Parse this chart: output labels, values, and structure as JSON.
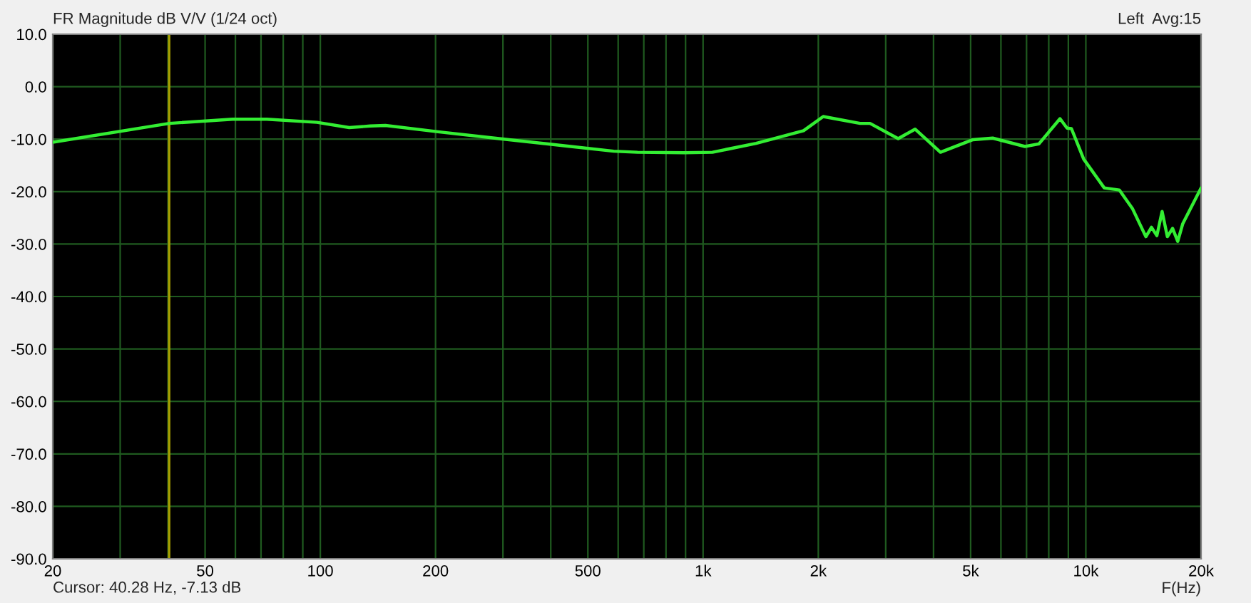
{
  "chart_data": {
    "type": "line",
    "title": "FR Magnitude dB V/V (1/24 oct)",
    "xlabel": "F(Hz)",
    "log": "x",
    "grid": true,
    "legend": false,
    "line_style": "solid",
    "marker": "none",
    "annotations": [
      "Left  Avg:15",
      "Cursor: 40.28 Hz, -7.13 dB"
    ],
    "xlim": [
      20,
      20000
    ],
    "ylim": [
      -90,
      10
    ],
    "xticks": [
      20,
      {
        "value": 30,
        "label": null
      },
      {
        "value": 40,
        "label": null
      },
      50,
      {
        "value": 60,
        "label": null
      },
      {
        "value": 70,
        "label": null
      },
      {
        "value": 80,
        "label": null
      },
      {
        "value": 90,
        "label": null
      },
      100,
      200,
      {
        "value": 300,
        "label": null
      },
      {
        "value": 400,
        "label": null
      },
      500,
      {
        "value": 600,
        "label": null
      },
      {
        "value": 700,
        "label": null
      },
      {
        "value": 800,
        "label": null
      },
      {
        "value": 900,
        "label": null
      },
      {
        "value": 1000,
        "label": "1k"
      },
      {
        "value": 2000,
        "label": "2k"
      },
      {
        "value": 3000,
        "label": null
      },
      {
        "value": 4000,
        "label": null
      },
      {
        "value": 5000,
        "label": "5k"
      },
      {
        "value": 6000,
        "label": null
      },
      {
        "value": 7000,
        "label": null
      },
      {
        "value": 8000,
        "label": null
      },
      {
        "value": 9000,
        "label": null
      },
      {
        "value": 10000,
        "label": "10k"
      },
      {
        "value": 20000,
        "label": "20k"
      }
    ],
    "yticks": [
      {
        "value": 10,
        "label": "10.0"
      },
      {
        "value": 0,
        "label": "0.0"
      },
      {
        "value": -10,
        "label": "-10.0"
      },
      {
        "value": -20,
        "label": "-20.0"
      },
      {
        "value": -30,
        "label": "-30.0"
      },
      {
        "value": -40,
        "label": "-40.0"
      },
      {
        "value": -50,
        "label": "-50.0"
      },
      {
        "value": -60,
        "label": "-60.0"
      },
      {
        "value": -70,
        "label": "-70.0"
      },
      {
        "value": -80,
        "label": "-80.0"
      },
      {
        "value": -90,
        "label": "-90.0"
      }
    ],
    "ref_lines": [
      {
        "axis": "x",
        "value": 40.28,
        "color": "#a8a000"
      }
    ],
    "series": [
      {
        "color": "#33ee33",
        "x": [
          20,
          40.3,
          59,
          72.5,
          98,
          119,
          135,
          148,
          203,
          302,
          438,
          584,
          674,
          893,
          1058,
          1376,
          1830,
          2060,
          2572,
          2730,
          3234,
          3580,
          4170,
          5070,
          5710,
          6930,
          7540,
          8560,
          8930,
          9170,
          9870,
          11170,
          12230,
          13250,
          14350,
          14840,
          15330,
          15820,
          16330,
          16850,
          17380,
          17920,
          20000
        ],
        "values": [
          -10.6,
          -7.0,
          -6.2,
          -6.2,
          -6.8,
          -7.8,
          -7.5,
          -7.4,
          -8.6,
          -10.0,
          -11.3,
          -12.3,
          -12.5,
          -12.6,
          -12.5,
          -10.8,
          -8.4,
          -5.7,
          -7.0,
          -7.0,
          -9.9,
          -8.1,
          -12.5,
          -10.1,
          -9.8,
          -11.4,
          -10.9,
          -6.1,
          -7.9,
          -8.0,
          -13.8,
          -19.3,
          -19.7,
          -23.3,
          -28.6,
          -26.8,
          -28.4,
          -23.8,
          -28.6,
          -27.0,
          -29.5,
          -26.1,
          -19.3
        ]
      }
    ]
  }
}
